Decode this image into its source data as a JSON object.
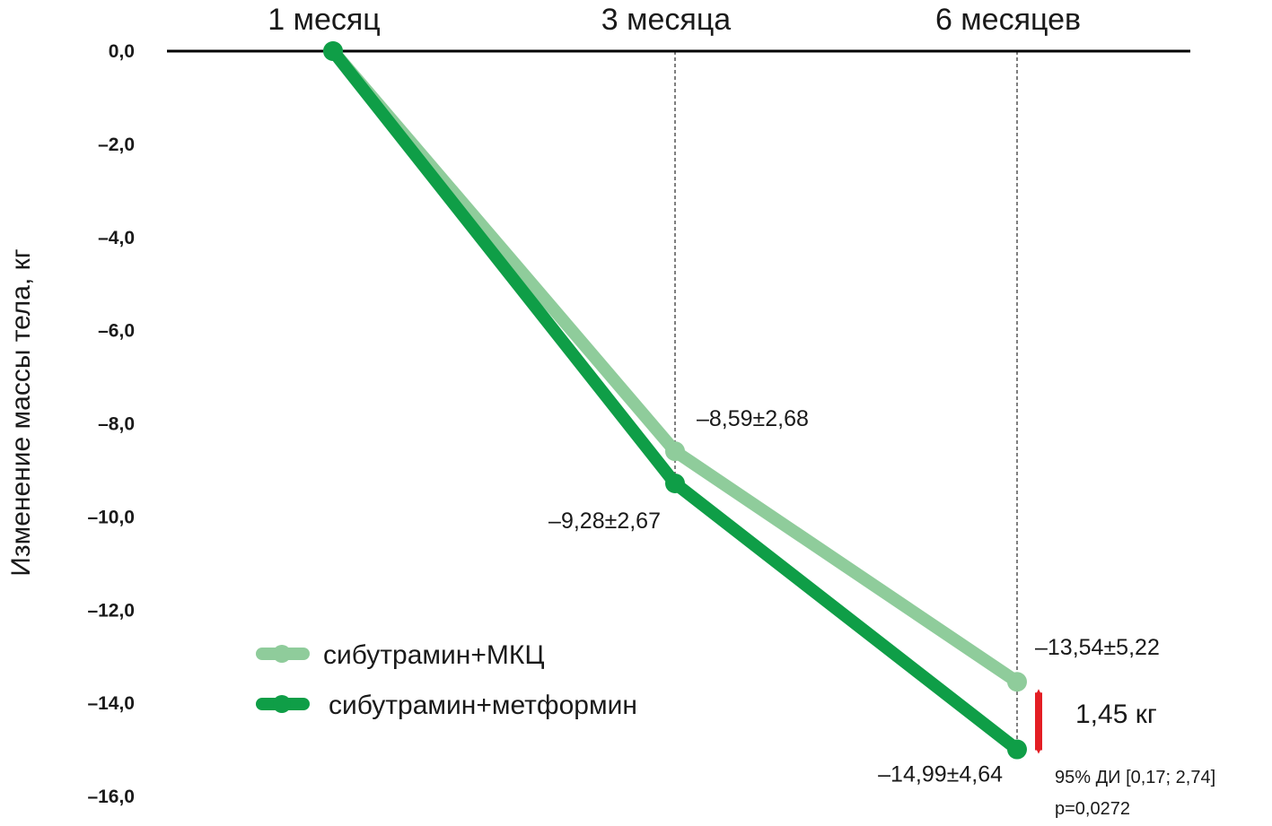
{
  "chart_data": {
    "type": "line",
    "categories": [
      "1 месяц",
      "3 месяца",
      "6 месяцев"
    ],
    "ylabel": "Изменение массы тела, кг",
    "ylim": [
      -16,
      0
    ],
    "yticks": [
      0,
      -2,
      -4,
      -6,
      -8,
      -10,
      -12,
      -14,
      -16
    ],
    "ytick_labels": [
      "0,0",
      "–2,0",
      "–4,0",
      "–6,0",
      "–8,0",
      "–10,0",
      "–12,0",
      "–14,0",
      "–16,0"
    ],
    "series": [
      {
        "name": "сибутрамин+МКЦ",
        "color": "#8fcc9b",
        "values": [
          0,
          -8.59,
          -13.54
        ],
        "labels": [
          "",
          "–8,59±2,68",
          "–13,54±5,22"
        ]
      },
      {
        "name": "сибутрамин+метформин",
        "color": "#0f9e47",
        "values": [
          0,
          -9.28,
          -14.99
        ],
        "labels": [
          "",
          "–9,28±2,67",
          "–14,99±4,64"
        ]
      }
    ],
    "legend_position": "bottom-left",
    "annotation": {
      "difference": "1,45 кг",
      "difference_color": "#e31e24",
      "ci": "95% ДИ [0,17; 2,74]",
      "p": "p=0,0272"
    }
  }
}
